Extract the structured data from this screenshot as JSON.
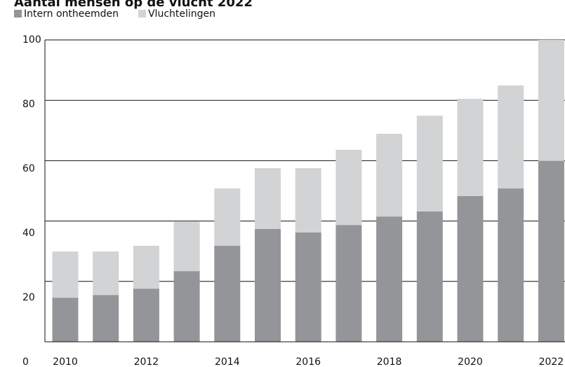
{
  "chart_data": {
    "type": "stacked_bar",
    "title": "Aantal mensen op de vlucht 2022",
    "categories": [
      "2010",
      null,
      "2012",
      null,
      "2014",
      null,
      "2016",
      null,
      "2018",
      null,
      "2020",
      null,
      "2022"
    ],
    "series": [
      {
        "name": "Intern ontheemden",
        "color": "#939598",
        "values": [
          14.6,
          15.5,
          17.6,
          23.4,
          31.8,
          37.4,
          36.2,
          38.7,
          41.5,
          43.2,
          48.3,
          50.8,
          59.9
        ]
      },
      {
        "name": "Vluchtelingen",
        "color": "#d1d3d4",
        "values": [
          15.3,
          14.4,
          14.2,
          16.5,
          19.0,
          20.1,
          21.3,
          24.9,
          27.4,
          31.7,
          32.2,
          34.1,
          40.1
        ]
      }
    ],
    "ylim": [
      0,
      100
    ],
    "yticks": [
      0,
      20,
      40,
      60,
      80,
      100
    ],
    "grid": true,
    "legend": "top-left"
  }
}
